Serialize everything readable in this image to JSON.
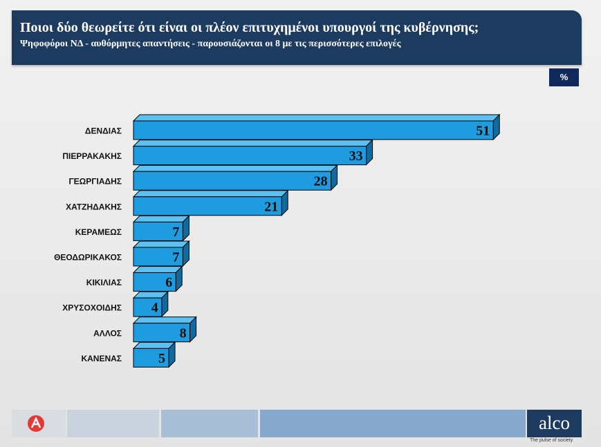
{
  "header": {
    "title": "Ποιοι δύο θεωρείτε ότι είναι οι πλέον επιτυχημένοι υπουργοί της κυβέρνησης;",
    "subtitle": "Ψηφοφόροι ΝΔ - αυθόρμητες απαντήσεις - παρουσιάζονται οι 8 με τις περισσότερες επιλογές"
  },
  "unit_label": "%",
  "colors": {
    "header_bg": "#1d3a5f",
    "bar_front": "#1f9be0",
    "bar_top": "#5cc0f0",
    "bar_side": "#0f6aa0"
  },
  "chart_data": {
    "type": "bar",
    "orientation": "horizontal",
    "title": "",
    "xlabel": "",
    "ylabel": "",
    "categories": [
      "ΔΕΝΔΙΑΣ",
      "ΠΙΕΡΡΑΚΑΚΗΣ",
      "ΓΕΩΡΓΙΑΔΗΣ",
      "ΧΑΤΖΗΔΑΚΗΣ",
      "ΚΕΡΑΜΕΩΣ",
      "ΘΕΟΔΩΡΙΚΑΚΟΣ",
      "ΚΙΚΙΛΙΑΣ",
      "ΧΡΥΣΟΧΟΙΔΗΣ",
      "ΑΛΛΟΣ",
      "ΚΑΝΕΝΑΣ"
    ],
    "values": [
      51,
      33,
      28,
      21,
      7,
      7,
      6,
      4,
      8,
      5
    ],
    "grid": false,
    "legend": "none"
  },
  "footer": {
    "brand": "alco",
    "tagline": "The pulse of society",
    "logo_left": "ALPHA NEWS",
    "logo_left_icon": "alpha-news-logo-icon"
  }
}
